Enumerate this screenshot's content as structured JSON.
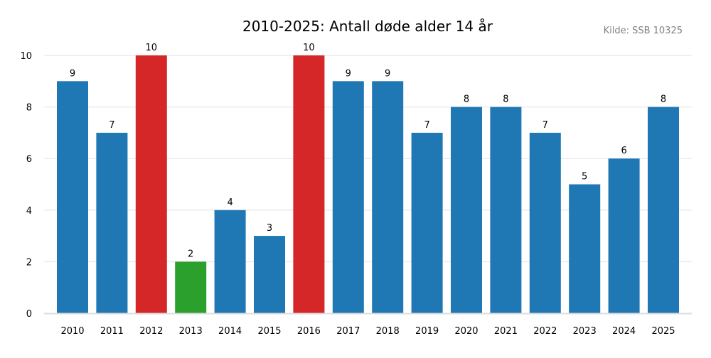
{
  "chart_data": {
    "type": "bar",
    "title": "2010-2025: Antall døde alder 14 år",
    "source": "Kilde: SSB 10325",
    "xlabel": "",
    "ylabel": "",
    "ylim": [
      0,
      10
    ],
    "yticks": [
      0,
      2,
      4,
      6,
      8,
      10
    ],
    "grid": true,
    "categories": [
      "2010",
      "2011",
      "2012",
      "2013",
      "2014",
      "2015",
      "2016",
      "2017",
      "2018",
      "2019",
      "2020",
      "2021",
      "2022",
      "2023",
      "2024",
      "2025"
    ],
    "values": [
      9,
      7,
      10,
      2,
      4,
      3,
      10,
      9,
      9,
      7,
      8,
      8,
      7,
      5,
      6,
      8
    ],
    "bar_colors": [
      "#1f77b4",
      "#1f77b4",
      "#d62728",
      "#2ca02c",
      "#1f77b4",
      "#1f77b4",
      "#d62728",
      "#1f77b4",
      "#1f77b4",
      "#1f77b4",
      "#1f77b4",
      "#1f77b4",
      "#1f77b4",
      "#1f77b4",
      "#1f77b4",
      "#1f77b4"
    ],
    "colors": {
      "normal": "#1f77b4",
      "max": "#d62728",
      "min": "#2ca02c"
    }
  }
}
